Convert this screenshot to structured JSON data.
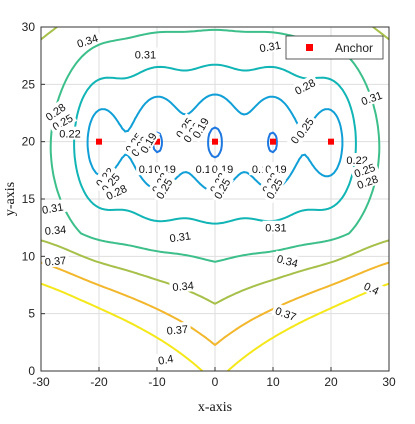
{
  "chart_data": {
    "type": "contour",
    "xlabel": "x-axis",
    "ylabel": "y-axis",
    "xlim": [
      -30,
      30
    ],
    "ylim": [
      0,
      30
    ],
    "x_ticks": [
      -30,
      -20,
      -10,
      0,
      10,
      20,
      30
    ],
    "y_ticks": [
      0,
      5,
      10,
      15,
      20,
      25,
      30
    ],
    "grid": true,
    "legend": {
      "placement": "top-right",
      "entries": [
        {
          "label": "Anchor",
          "marker": "square",
          "color": "#ff0000"
        }
      ]
    },
    "anchors": [
      {
        "x": -20,
        "y": 20
      },
      {
        "x": -10,
        "y": 20
      },
      {
        "x": 0,
        "y": 20
      },
      {
        "x": 10,
        "y": 20
      },
      {
        "x": 20,
        "y": 20
      }
    ],
    "contour_levels": [
      0.16,
      0.19,
      0.22,
      0.25,
      0.28,
      0.31,
      0.34,
      0.37,
      0.4
    ],
    "level_colors": {
      "0.16": "#3e1a8f",
      "0.19": "#2f4fcf",
      "0.22": "#1e78e0",
      "0.25": "#109fd6",
      "0.28": "#12b5b5",
      "0.31": "#3cbf8a",
      "0.34": "#a6c04a",
      "0.37": "#f2b72c",
      "0.4": "#f5e81a"
    },
    "contour_labels": [
      {
        "text": "0.34",
        "x": -22,
        "y": 28.8,
        "rot": -18
      },
      {
        "text": "0.31",
        "x": -12,
        "y": 27.6,
        "rot": 0
      },
      {
        "text": "0.31",
        "x": 9.5,
        "y": 28.3,
        "rot": -10
      },
      {
        "text": "0.28",
        "x": 15.5,
        "y": 24.8,
        "rot": -28
      },
      {
        "text": "0.31",
        "x": 27,
        "y": 23.8,
        "rot": -20
      },
      {
        "text": "0.28",
        "x": -27.5,
        "y": 22.6,
        "rot": -35
      },
      {
        "text": "0.25",
        "x": -26.3,
        "y": 21.7,
        "rot": -30
      },
      {
        "text": "0.22",
        "x": -25,
        "y": 20.7,
        "rot": 0
      },
      {
        "text": "0.25",
        "x": -14,
        "y": 19.9,
        "rot": -55
      },
      {
        "text": "0.22",
        "x": -13,
        "y": 19.6,
        "rot": -55
      },
      {
        "text": "0.19",
        "x": -11.5,
        "y": 19.9,
        "rot": -60
      },
      {
        "text": "0.25",
        "x": -5.3,
        "y": 21.2,
        "rot": -55
      },
      {
        "text": "0.22",
        "x": -4,
        "y": 20.8,
        "rot": -55
      },
      {
        "text": "0.19",
        "x": -2.5,
        "y": 21.2,
        "rot": -60
      },
      {
        "text": "0.22",
        "x": 14.5,
        "y": 20.7,
        "rot": -55
      },
      {
        "text": "0.25",
        "x": 15.5,
        "y": 21.2,
        "rot": -55
      },
      {
        "text": "0.22",
        "x": 24.5,
        "y": 18.4,
        "rot": 0
      },
      {
        "text": "0.25",
        "x": 25.8,
        "y": 17.5,
        "rot": -20
      },
      {
        "text": "0.28",
        "x": 26.3,
        "y": 16.5,
        "rot": -20
      },
      {
        "text": "0.16",
        "x": -11.3,
        "y": 17.6,
        "rot": 0
      },
      {
        "text": "0.19",
        "x": -8.6,
        "y": 17.6,
        "rot": 0
      },
      {
        "text": "0.16",
        "x": -1.5,
        "y": 17.6,
        "rot": 0
      },
      {
        "text": "0.19",
        "x": 1.3,
        "y": 17.6,
        "rot": 0
      },
      {
        "text": "0.16",
        "x": 8.2,
        "y": 17.6,
        "rot": 0
      },
      {
        "text": "0.19",
        "x": 10.5,
        "y": 17.6,
        "rot": 0
      },
      {
        "text": "0.22",
        "x": -19,
        "y": 16.9,
        "rot": -50
      },
      {
        "text": "0.25",
        "x": -18,
        "y": 16.4,
        "rot": -50
      },
      {
        "text": "0.28",
        "x": -17,
        "y": 15.6,
        "rot": -25
      },
      {
        "text": "0.22",
        "x": -9.5,
        "y": 16.4,
        "rot": -60
      },
      {
        "text": "0.25",
        "x": -8.8,
        "y": 15.9,
        "rot": -60
      },
      {
        "text": "0.22",
        "x": 0.5,
        "y": 16.4,
        "rot": -60
      },
      {
        "text": "0.25",
        "x": 1.2,
        "y": 15.9,
        "rot": -60
      },
      {
        "text": "0.22",
        "x": 9.5,
        "y": 16.4,
        "rot": -60
      },
      {
        "text": "0.25",
        "x": 10.2,
        "y": 15.9,
        "rot": -60
      },
      {
        "text": "0.31",
        "x": -28,
        "y": 14.2,
        "rot": -10
      },
      {
        "text": "0.34",
        "x": -27.5,
        "y": 12.3,
        "rot": -5
      },
      {
        "text": "0.31",
        "x": -6,
        "y": 11.7,
        "rot": -8
      },
      {
        "text": "0.31",
        "x": 10.5,
        "y": 12.5,
        "rot": 0
      },
      {
        "text": "0.37",
        "x": -27.5,
        "y": 9.6,
        "rot": -5
      },
      {
        "text": "0.34",
        "x": 12.5,
        "y": 9.6,
        "rot": 15
      },
      {
        "text": "0.34",
        "x": -5.5,
        "y": 7.4,
        "rot": -5
      },
      {
        "text": "0.4",
        "x": 27,
        "y": 7.2,
        "rot": 25
      },
      {
        "text": "0.37",
        "x": 12.2,
        "y": 5,
        "rot": 20
      },
      {
        "text": "0.37",
        "x": -6.5,
        "y": 3.6,
        "rot": -5
      },
      {
        "text": "0.4",
        "x": -8.5,
        "y": 1.0,
        "rot": -10
      }
    ]
  }
}
